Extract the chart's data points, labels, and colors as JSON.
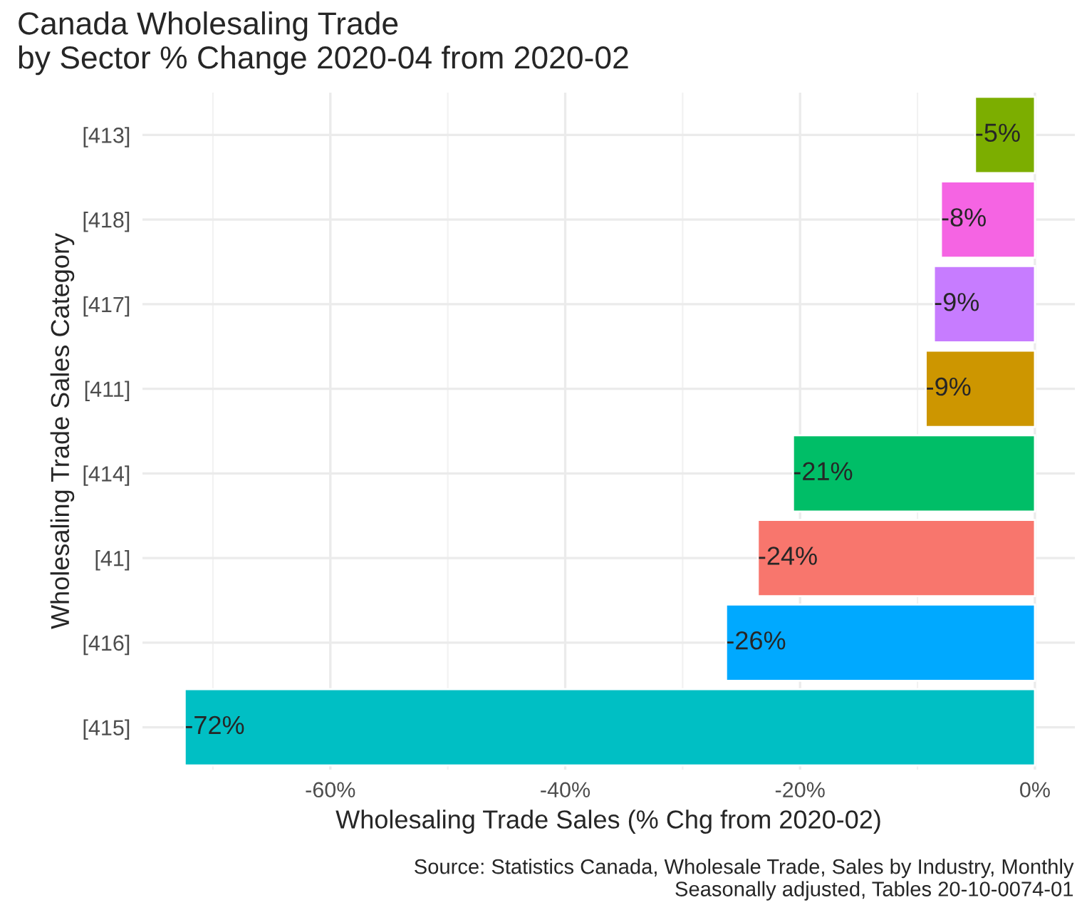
{
  "chart_data": {
    "type": "bar",
    "orientation": "horizontal",
    "title": "Canada Wholesaling Trade\nby Sector % Change 2020-04 from 2020-02",
    "xlabel": "Wholesaling Trade Sales (% Chg from 2020-02)",
    "ylabel": "Wholesaling Trade Sales Category",
    "categories": [
      "[413]",
      "[418]",
      "[417]",
      "[411]",
      "[414]",
      "[41]",
      "[416]",
      "[415]"
    ],
    "values": [
      -5.1,
      -8.0,
      -8.6,
      -9.3,
      -20.6,
      -23.6,
      -26.3,
      -72.4
    ],
    "value_labels": [
      "-5%",
      "-8%",
      "-9%",
      "-9%",
      "-21%",
      "-24%",
      "-26%",
      "-72%"
    ],
    "colors": [
      "#7cae00",
      "#f564e3",
      "#c77cff",
      "#cd9600",
      "#00be67",
      "#f8766d",
      "#00a9ff",
      "#00bfc4"
    ],
    "xlim": [
      -76,
      3.4
    ],
    "xticks": [
      {
        "value": -60,
        "label": "-60%"
      },
      {
        "value": -40,
        "label": "-40%"
      },
      {
        "value": -20,
        "label": "-20%"
      },
      {
        "value": 0,
        "label": "0%"
      }
    ],
    "grid": true,
    "annotations": [
      "Source: Statistics Canada, Wholesale Trade, Sales by Industry, Monthly\nSeasonally adjusted, Tables 20-10-0074-01"
    ]
  }
}
